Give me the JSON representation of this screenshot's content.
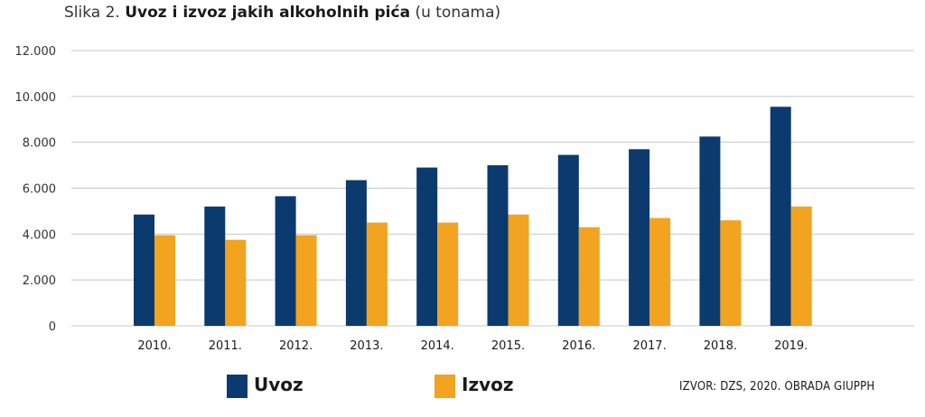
{
  "title": {
    "prefix": "Slika 2. ",
    "main": "Uvoz i izvoz jakih alkoholnih pića",
    "unit": " (u tonama)"
  },
  "source": "IZVOR: DZS, 2020. OBRADA GIUPPH",
  "colors": {
    "uvoz": "#0b3a6e",
    "izvoz": "#f2a31f",
    "grid": "#c8c8c8"
  },
  "chart_data": {
    "type": "bar",
    "categories": [
      "2010.",
      "2011.",
      "2012.",
      "2013.",
      "2014.",
      "2015.",
      "2016.",
      "2017.",
      "2018.",
      "2019."
    ],
    "series": [
      {
        "name": "Uvoz",
        "values": [
          4850,
          5200,
          5650,
          6350,
          6900,
          7000,
          7450,
          7700,
          8250,
          9550
        ]
      },
      {
        "name": "Izvoz",
        "values": [
          3950,
          3750,
          3950,
          4500,
          4500,
          4850,
          4300,
          4700,
          4600,
          5200
        ]
      }
    ],
    "ylim": [
      0,
      12000
    ],
    "yticks": [
      "0",
      "2.000",
      "4.000",
      "6.000",
      "8.000",
      "10.000",
      "12.000"
    ],
    "grid": true,
    "legend_position": "bottom-left"
  }
}
